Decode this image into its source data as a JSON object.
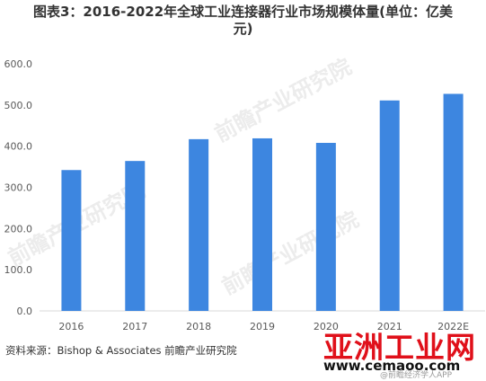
{
  "title_line1": "图表3：2016-2022年全球工业连接器行业市场规模体量(单位：亿美",
  "title_line2": "元)",
  "source": "资料来源：Bishop & Associates  前瞻产业研究院",
  "watermarks": {
    "faint": "前瞻产业研究院",
    "brand": "亚洲工业网",
    "url": "www.cemaoo.com",
    "footer": "@前瞻经济学人APP"
  },
  "colors": {
    "bar": "#3d86e0",
    "axis_text": "#595959",
    "grid": "#d9d9d9"
  },
  "chart_data": {
    "type": "bar",
    "categories": [
      "2016",
      "2017",
      "2018",
      "2019",
      "2020",
      "2021",
      "2022E"
    ],
    "values": [
      342,
      364,
      417,
      419,
      408,
      511,
      527
    ],
    "title": "图表3：2016-2022年全球工业连接器行业市场规模体量(单位：亿美元)",
    "ylim": [
      0,
      600
    ],
    "yticks": [
      "0.0",
      "100.0",
      "200.0",
      "300.0",
      "400.0",
      "500.0",
      "600.0"
    ],
    "grid": false,
    "legend": "none"
  }
}
